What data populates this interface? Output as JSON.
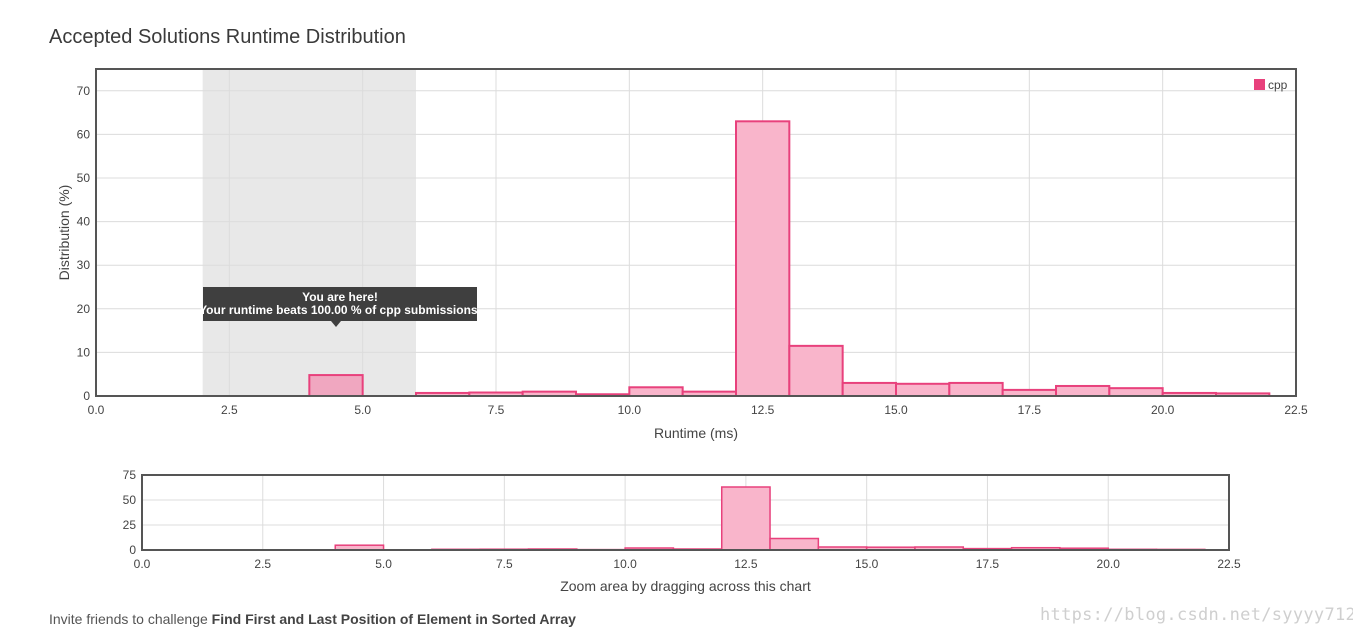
{
  "title": "Accepted Solutions Runtime Distribution",
  "footer": {
    "prefix": "Invite friends to challenge",
    "problem": "Find First and Last Position of Element in Sorted Array"
  },
  "watermark": "https://blog.csdn.net/syyyy712",
  "tooltip": {
    "line1": "You are here!",
    "line2": "Your runtime beats 100.00 % of cpp submissions."
  },
  "colors": {
    "bar_fill": "#f9b5cb",
    "bar_stroke": "#e8417c",
    "highlight_fill": "#f0a7c0",
    "selection": "#e8e8e8",
    "tooltip_bg": "#3f3f3f",
    "frame": "#555555"
  },
  "chart_data": [
    {
      "type": "bar",
      "xlabel": "Runtime (ms)",
      "ylabel": "Distribution (%)",
      "xlim": [
        0,
        22.5
      ],
      "ylim": [
        0,
        75
      ],
      "xticks": [
        "0.0",
        "2.5",
        "5.0",
        "7.5",
        "10.0",
        "12.5",
        "15.0",
        "17.5",
        "20.0",
        "22.5"
      ],
      "yticks": [
        "0",
        "10",
        "20",
        "30",
        "40",
        "50",
        "60",
        "70"
      ],
      "grid": true,
      "legend": "top-right",
      "selection_range": [
        2,
        6
      ],
      "highlight_bin_start": 4,
      "series": [
        {
          "name": "cpp",
          "bins": [
            {
              "start": 4,
              "end": 5,
              "value": 4.8
            },
            {
              "start": 6,
              "end": 7,
              "value": 0.7
            },
            {
              "start": 7,
              "end": 8,
              "value": 0.8
            },
            {
              "start": 8,
              "end": 9,
              "value": 1.0
            },
            {
              "start": 9,
              "end": 10,
              "value": 0.4
            },
            {
              "start": 10,
              "end": 11,
              "value": 2.0
            },
            {
              "start": 11,
              "end": 12,
              "value": 1.0
            },
            {
              "start": 12,
              "end": 13,
              "value": 63.0
            },
            {
              "start": 13,
              "end": 14,
              "value": 11.5
            },
            {
              "start": 14,
              "end": 15,
              "value": 3.0
            },
            {
              "start": 15,
              "end": 16,
              "value": 2.8
            },
            {
              "start": 16,
              "end": 17,
              "value": 3.0
            },
            {
              "start": 17,
              "end": 18,
              "value": 1.4
            },
            {
              "start": 18,
              "end": 19,
              "value": 2.3
            },
            {
              "start": 19,
              "end": 20,
              "value": 1.8
            },
            {
              "start": 20,
              "end": 21,
              "value": 0.7
            },
            {
              "start": 21,
              "end": 22,
              "value": 0.6
            }
          ]
        }
      ]
    },
    {
      "type": "bar",
      "xlabel": "Zoom area by dragging across this chart",
      "xlim": [
        0,
        22.5
      ],
      "ylim": [
        0,
        75
      ],
      "xticks": [
        "0.0",
        "2.5",
        "5.0",
        "7.5",
        "10.0",
        "12.5",
        "15.0",
        "17.5",
        "20.0",
        "22.5"
      ],
      "yticks": [
        "0",
        "25",
        "50",
        "75"
      ],
      "grid": true
    }
  ]
}
